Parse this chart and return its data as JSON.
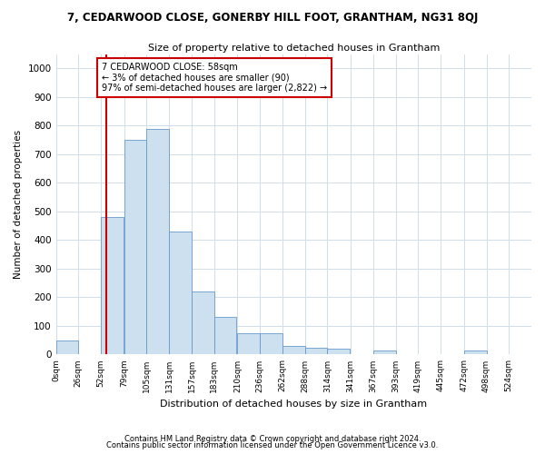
{
  "title": "7, CEDARWOOD CLOSE, GONERBY HILL FOOT, GRANTHAM, NG31 8QJ",
  "subtitle": "Size of property relative to detached houses in Grantham",
  "xlabel": "Distribution of detached houses by size in Grantham",
  "ylabel": "Number of detached properties",
  "bin_labels": [
    "0sqm",
    "26sqm",
    "52sqm",
    "79sqm",
    "105sqm",
    "131sqm",
    "157sqm",
    "183sqm",
    "210sqm",
    "236sqm",
    "262sqm",
    "288sqm",
    "314sqm",
    "341sqm",
    "367sqm",
    "393sqm",
    "419sqm",
    "445sqm",
    "472sqm",
    "498sqm",
    "524sqm"
  ],
  "bin_edges": [
    0,
    26,
    52,
    79,
    105,
    131,
    157,
    183,
    210,
    236,
    262,
    288,
    314,
    341,
    367,
    393,
    419,
    445,
    472,
    498,
    524
  ],
  "bar_heights": [
    50,
    0,
    480,
    750,
    790,
    430,
    220,
    130,
    75,
    75,
    30,
    25,
    20,
    0,
    15,
    0,
    0,
    0,
    15,
    0,
    0
  ],
  "bar_color": "#cce0f0",
  "bar_edge_color": "#6699cc",
  "property_size": 58,
  "vline_color": "#cc0000",
  "annotation_text": "7 CEDARWOOD CLOSE: 58sqm\n← 3% of detached houses are smaller (90)\n97% of semi-detached houses are larger (2,822) →",
  "annotation_box_color": "#ffffff",
  "annotation_box_edge_color": "#cc0000",
  "ylim": [
    0,
    1050
  ],
  "yticks": [
    0,
    100,
    200,
    300,
    400,
    500,
    600,
    700,
    800,
    900,
    1000
  ],
  "footnote1": "Contains HM Land Registry data © Crown copyright and database right 2024.",
  "footnote2": "Contains public sector information licensed under the Open Government Licence v3.0.",
  "background_color": "#ffffff",
  "grid_color": "#d0dde8"
}
